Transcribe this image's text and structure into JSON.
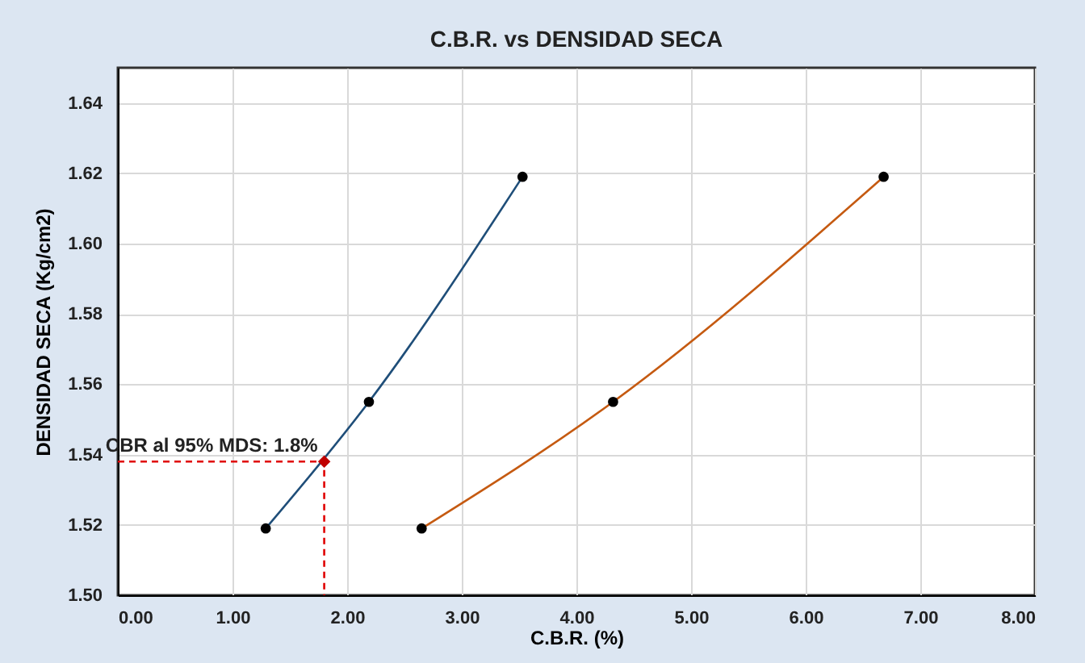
{
  "chart_data": {
    "type": "line",
    "title": "C.B.R. vs DENSIDAD SECA",
    "xlabel": "C.B.R. (%)",
    "ylabel": "DENSIDAD SECA (Kg/cm2)",
    "xlim": [
      0,
      8
    ],
    "xticks": [
      {
        "value": 0,
        "label": "0.00"
      },
      {
        "value": 1,
        "label": "1.00"
      },
      {
        "value": 2,
        "label": "2.00"
      },
      {
        "value": 3,
        "label": "3.00"
      },
      {
        "value": 4,
        "label": "4.00"
      },
      {
        "value": 5,
        "label": "5.00"
      },
      {
        "value": 6,
        "label": "6.00"
      },
      {
        "value": 7,
        "label": "7.00"
      },
      {
        "value": 8,
        "label": "8.00"
      }
    ],
    "ylim": [
      1.5,
      1.65
    ],
    "yticks": [
      {
        "value": 1.5,
        "label": "1.50"
      },
      1.52,
      1.54,
      1.56,
      1.58,
      {
        "value": 1.6,
        "label": "1.60"
      },
      1.62,
      1.64
    ],
    "grid": true,
    "series": [
      {
        "color": "#1f4e79",
        "x": [
          1.29,
          2.19,
          3.53
        ],
        "values": [
          1.519,
          1.555,
          1.619
        ],
        "marker": "circle",
        "line_style": "solid"
      },
      {
        "color": "#c55a11",
        "x": [
          2.65,
          4.32,
          6.68
        ],
        "values": [
          1.519,
          1.555,
          1.619
        ],
        "marker": "circle",
        "line_style": "solid"
      },
      {
        "color": "#e00000",
        "x": [
          0,
          1.8,
          1.8
        ],
        "values": [
          1.538,
          1.538,
          1.5
        ],
        "marker": "none",
        "line_style": "dashed"
      },
      {
        "type": "scatter",
        "color": "#c00000",
        "x": [
          1.8
        ],
        "values": [
          1.538
        ],
        "marker": "diamond"
      }
    ],
    "annotations": [
      {
        "text": "CBR al 95% MDS: 1.8%",
        "x": 1.8,
        "y": 1.538
      }
    ]
  }
}
